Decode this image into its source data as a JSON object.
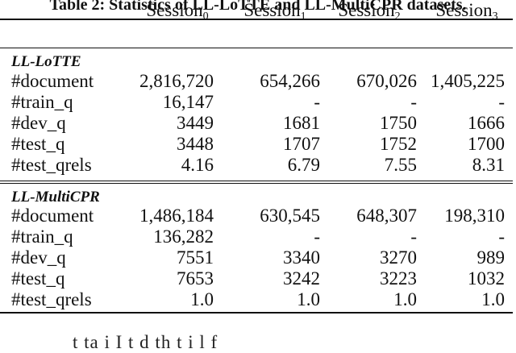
{
  "caption": "Table 2: Statistics of LL-LoTTE and LL-MultiCPR datasets.",
  "columns": [
    {
      "base": "Session",
      "sub": "0"
    },
    {
      "base": "Session",
      "sub": "1"
    },
    {
      "base": "Session",
      "sub": "2"
    },
    {
      "base": "Session",
      "sub": "3"
    }
  ],
  "sections": [
    {
      "title": "LL-LoTTE",
      "rows": [
        {
          "label": "#document",
          "values": [
            "2,816,720",
            "654,266",
            "670,026",
            "1,405,225"
          ]
        },
        {
          "label": "#train_q",
          "values": [
            "16,147",
            "-",
            "-",
            "-"
          ]
        },
        {
          "label": "#dev_q",
          "values": [
            "3449",
            "1681",
            "1750",
            "1666"
          ]
        },
        {
          "label": "#test_q",
          "values": [
            "3448",
            "1707",
            "1752",
            "1700"
          ]
        },
        {
          "label": "#test_qrels",
          "values": [
            "4.16",
            "6.79",
            "7.55",
            "8.31"
          ]
        }
      ]
    },
    {
      "title": "LL-MultiCPR",
      "rows": [
        {
          "label": "#document",
          "values": [
            "1,486,184",
            "630,545",
            "648,307",
            "198,310"
          ]
        },
        {
          "label": "#train_q",
          "values": [
            "136,282",
            "-",
            "-",
            "-"
          ]
        },
        {
          "label": "#dev_q",
          "values": [
            "7551",
            "3340",
            "3270",
            "989"
          ]
        },
        {
          "label": "#test_q",
          "values": [
            "7653",
            "3242",
            "3223",
            "1032"
          ]
        },
        {
          "label": "#test_qrels",
          "values": [
            "1.0",
            "1.0",
            "1.0",
            "1.0"
          ]
        }
      ]
    }
  ],
  "body_fragment": "t   ta  i  I t  d  th   t i l   f"
}
